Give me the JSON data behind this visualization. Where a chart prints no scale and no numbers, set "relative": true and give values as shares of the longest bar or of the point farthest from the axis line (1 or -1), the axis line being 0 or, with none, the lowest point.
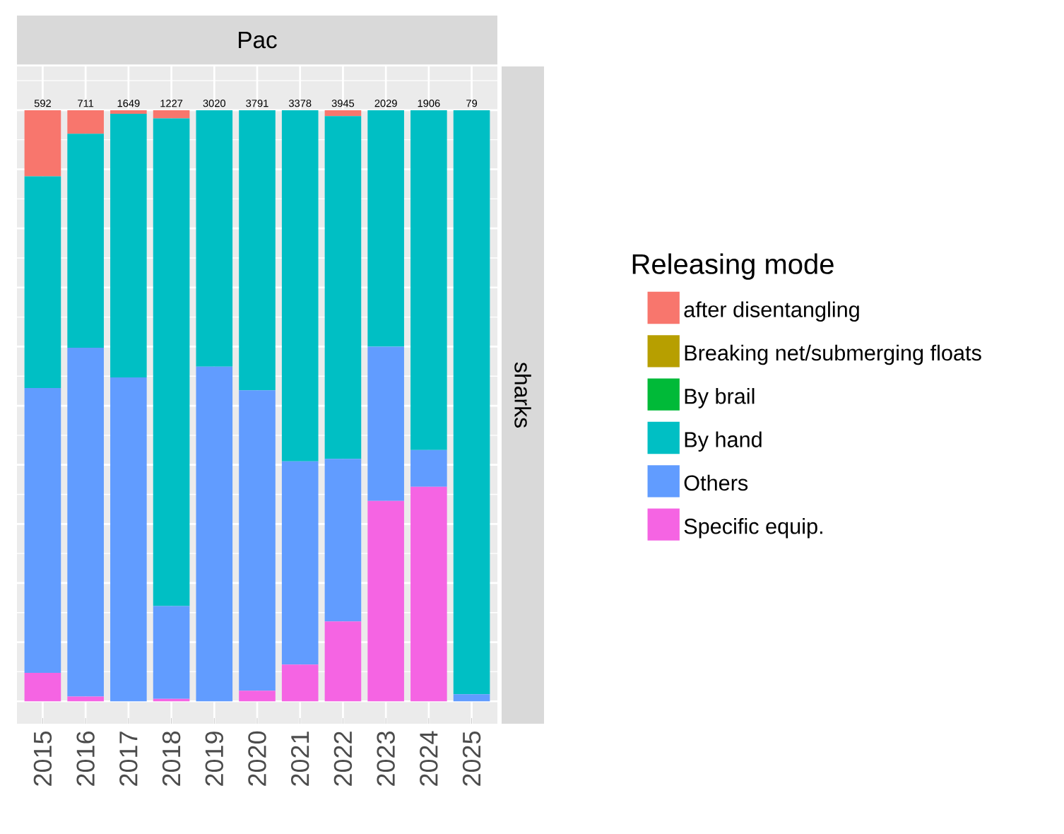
{
  "chart_data": {
    "type": "bar",
    "stacked": true,
    "relative": true,
    "title": "Pac",
    "annotations": [
      "sharks",
      {
        "text": "592",
        "x": "2015",
        "y": 1
      },
      {
        "text": "711",
        "x": "2016",
        "y": 1
      },
      {
        "text": "1649",
        "x": "2017",
        "y": 1
      },
      {
        "text": "1227",
        "x": "2018",
        "y": 1
      },
      {
        "text": "3020",
        "x": "2019",
        "y": 1
      },
      {
        "text": "3791",
        "x": "2020",
        "y": 1
      },
      {
        "text": "3378",
        "x": "2021",
        "y": 1
      },
      {
        "text": "3945",
        "x": "2022",
        "y": 1
      },
      {
        "text": "2029",
        "x": "2023",
        "y": 1
      },
      {
        "text": "1906",
        "x": "2024",
        "y": 1
      },
      {
        "text": "79",
        "x": "2025",
        "y": 1
      }
    ],
    "legend_title": "Releasing mode",
    "legend": "right",
    "grid": true,
    "categories": [
      "2015",
      "2016",
      "2017",
      "2018",
      "2019",
      "2020",
      "2021",
      "2022",
      "2023",
      "2024",
      "2025"
    ],
    "series": [
      {
        "name": "Specific equip.",
        "color": "#f564e3",
        "values": [
          0.048,
          0.008,
          0,
          0.004,
          0,
          0.018,
          0.062,
          0.135,
          0.339,
          0.363,
          0
        ]
      },
      {
        "name": "Others",
        "color": "#619cff",
        "values": [
          0.482,
          0.59,
          0.548,
          0.157,
          0.566,
          0.508,
          0.344,
          0.275,
          0.261,
          0.062,
          0.012
        ]
      },
      {
        "name": "By hand",
        "color": "#00bfc4",
        "values": [
          0.358,
          0.362,
          0.446,
          0.825,
          0.434,
          0.474,
          0.594,
          0.58,
          0.4,
          0.575,
          0.988
        ]
      },
      {
        "name": "By brail",
        "color": "#00ba38",
        "values": [
          0,
          0,
          0,
          0,
          0,
          0,
          0,
          0,
          0,
          0,
          0
        ]
      },
      {
        "name": "Breaking net/submerging floats",
        "color": "#b79f00",
        "values": [
          0,
          0,
          0,
          0,
          0,
          0,
          0,
          0,
          0,
          0,
          0
        ]
      },
      {
        "name": "after disentangling",
        "color": "#f8766d",
        "values": [
          0.112,
          0.04,
          0.006,
          0.014,
          0,
          0,
          0,
          0.01,
          0,
          0,
          0
        ]
      }
    ]
  }
}
